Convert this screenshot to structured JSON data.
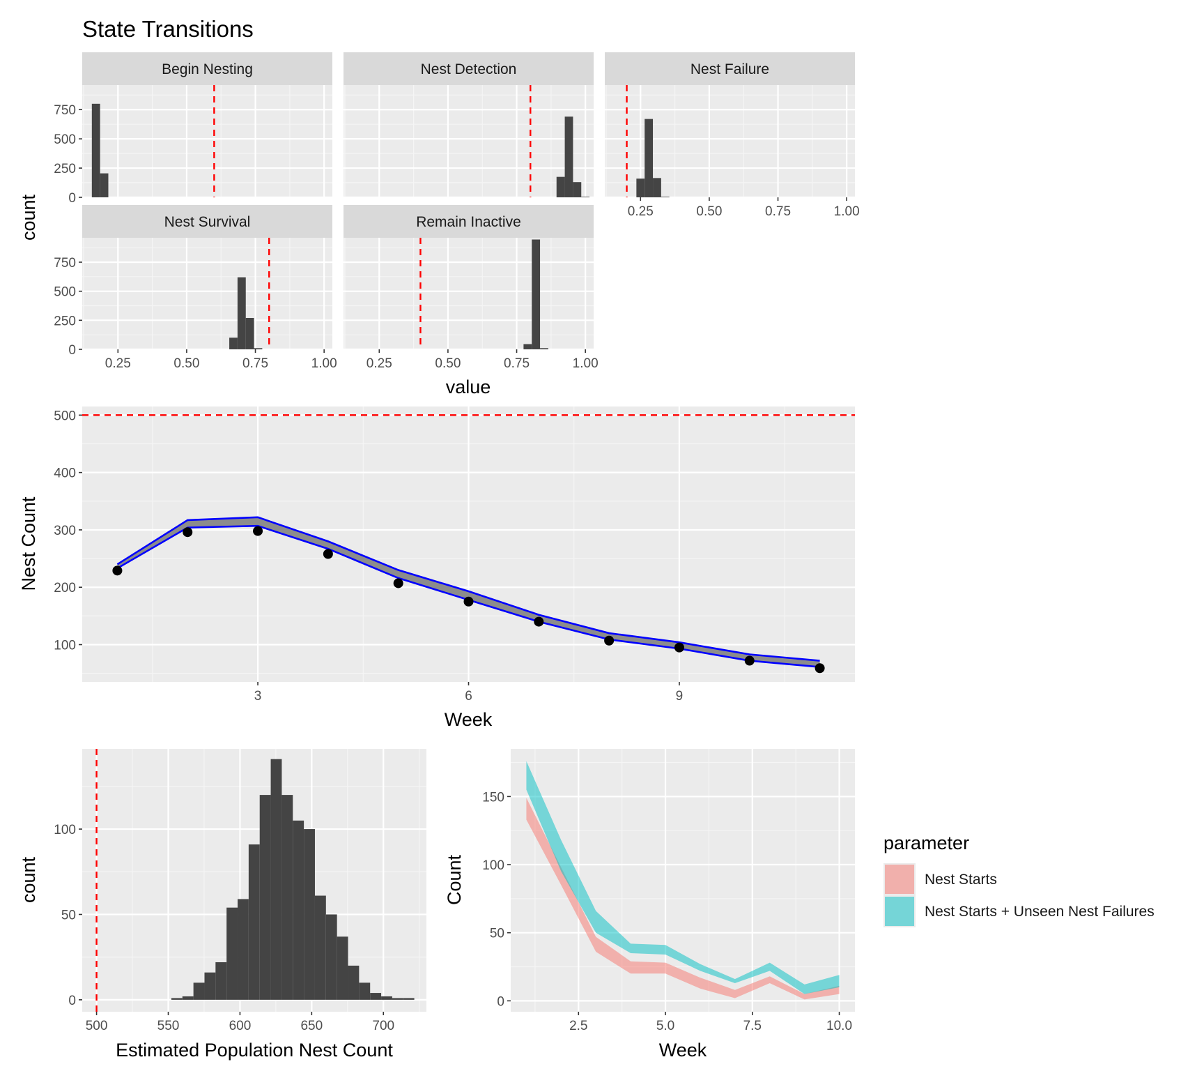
{
  "figure": {
    "title": "State Transitions"
  },
  "colors": {
    "panel_bg": "#ebebeb",
    "grid_major": "#ffffff",
    "grid_minor": "#f5f5f5",
    "strip_bg": "#d9d9d9",
    "bar_fill": "#444444",
    "reference_line": "#ff0000",
    "band_line": "#0000ff",
    "band_fill": "#8c8c8c",
    "point": "#000000",
    "nest_starts": "#f8766d",
    "nest_starts_unseen": "#00bfc4",
    "text_dark": "#1a1a1a",
    "text_axis": "#4d4d4d"
  },
  "chart_data": [
    {
      "id": "state_transitions",
      "type": "bar",
      "subtype": "faceted-histogram",
      "title": "State Transitions",
      "xlabel": "value",
      "ylabel": "count",
      "xlim": [
        0.12,
        1.03
      ],
      "ylim": [
        0,
        960
      ],
      "x_ticks": [
        0.25,
        0.5,
        0.75,
        1.0
      ],
      "x_tick_labels": [
        "0.25",
        "0.50",
        "0.75",
        "1.00"
      ],
      "y_ticks": [
        0,
        250,
        500,
        750
      ],
      "y_tick_labels": [
        "0",
        "250",
        "500",
        "750"
      ],
      "bin_width": 0.03,
      "grid": true,
      "facets": [
        {
          "name": "Begin Nesting",
          "reference": 0.6,
          "bins": [
            {
              "x": 0.17,
              "count": 800
            },
            {
              "x": 0.2,
              "count": 205
            }
          ]
        },
        {
          "name": "Nest Detection",
          "reference": 0.8,
          "bins": [
            {
              "x": 0.91,
              "count": 175
            },
            {
              "x": 0.94,
              "count": 690
            },
            {
              "x": 0.97,
              "count": 130
            },
            {
              "x": 1.0,
              "count": 5
            }
          ]
        },
        {
          "name": "Nest Failure",
          "reference": 0.2,
          "bins": [
            {
              "x": 0.25,
              "count": 160
            },
            {
              "x": 0.28,
              "count": 670
            },
            {
              "x": 0.31,
              "count": 165
            },
            {
              "x": 0.34,
              "count": 5
            }
          ]
        },
        {
          "name": "Nest Survival",
          "reference": 0.8,
          "bins": [
            {
              "x": 0.67,
              "count": 100
            },
            {
              "x": 0.7,
              "count": 620
            },
            {
              "x": 0.73,
              "count": 270
            },
            {
              "x": 0.76,
              "count": 10
            }
          ]
        },
        {
          "name": "Remain Inactive",
          "reference": 0.4,
          "bins": [
            {
              "x": 0.79,
              "count": 45
            },
            {
              "x": 0.82,
              "count": 945
            },
            {
              "x": 0.85,
              "count": 10
            }
          ]
        }
      ]
    },
    {
      "id": "nest_count",
      "type": "line",
      "subtype": "ribbon-with-points",
      "xlabel": "Week",
      "ylabel": "Nest Count",
      "xlim": [
        0.5,
        11.5
      ],
      "ylim": [
        35,
        515
      ],
      "x_ticks": [
        3,
        6,
        9
      ],
      "x_tick_labels": [
        "3",
        "6",
        "9"
      ],
      "y_ticks": [
        100,
        200,
        300,
        400,
        500
      ],
      "y_tick_labels": [
        "100",
        "200",
        "300",
        "400",
        "500"
      ],
      "reference_y": 500,
      "grid": true,
      "x": [
        1,
        2,
        3,
        4,
        5,
        6,
        7,
        8,
        9,
        10,
        11
      ],
      "band_upper": [
        240,
        317,
        322,
        280,
        230,
        193,
        152,
        120,
        104,
        83,
        72
      ],
      "band_lower": [
        233,
        304,
        307,
        267,
        216,
        178,
        140,
        109,
        93,
        72,
        61
      ],
      "observed": [
        229,
        296,
        298,
        258,
        207,
        175,
        140,
        107,
        95,
        72,
        59
      ]
    },
    {
      "id": "population_nest_count",
      "type": "bar",
      "subtype": "histogram",
      "xlabel": "Estimated Population Nest Count",
      "ylabel": "count",
      "xlim": [
        490,
        730
      ],
      "ylim": [
        -7,
        147
      ],
      "x_ticks": [
        500,
        550,
        600,
        650,
        700
      ],
      "x_tick_labels": [
        "500",
        "550",
        "600",
        "650",
        "700"
      ],
      "y_ticks": [
        0,
        50,
        100
      ],
      "y_tick_labels": [
        "0",
        "50",
        "100"
      ],
      "reference_x": 500,
      "bin_width": 7.7,
      "grid": true,
      "bins": [
        {
          "x": 556,
          "count": 1
        },
        {
          "x": 563.7,
          "count": 2
        },
        {
          "x": 571.4,
          "count": 10
        },
        {
          "x": 579.1,
          "count": 16
        },
        {
          "x": 586.8,
          "count": 22
        },
        {
          "x": 594.5,
          "count": 54
        },
        {
          "x": 602.2,
          "count": 59
        },
        {
          "x": 609.9,
          "count": 91
        },
        {
          "x": 617.6,
          "count": 120
        },
        {
          "x": 625.3,
          "count": 141
        },
        {
          "x": 633,
          "count": 120
        },
        {
          "x": 640.7,
          "count": 105
        },
        {
          "x": 648.4,
          "count": 100
        },
        {
          "x": 656.1,
          "count": 61
        },
        {
          "x": 663.8,
          "count": 50
        },
        {
          "x": 671.5,
          "count": 37
        },
        {
          "x": 679.2,
          "count": 20
        },
        {
          "x": 686.9,
          "count": 10
        },
        {
          "x": 694.6,
          "count": 4
        },
        {
          "x": 702.3,
          "count": 2
        },
        {
          "x": 710,
          "count": 1
        },
        {
          "x": 717.7,
          "count": 1
        }
      ]
    },
    {
      "id": "nest_starts",
      "type": "area",
      "subtype": "ribbons",
      "xlabel": "Week",
      "ylabel": "Count",
      "xlim": [
        0.55,
        10.45
      ],
      "ylim": [
        -8,
        185
      ],
      "x_ticks": [
        2.5,
        5.0,
        7.5,
        10.0
      ],
      "x_tick_labels": [
        "2.5",
        "5.0",
        "7.5",
        "10.0"
      ],
      "y_ticks": [
        0,
        50,
        100,
        150
      ],
      "y_tick_labels": [
        "0",
        "50",
        "100",
        "150"
      ],
      "grid": true,
      "legend_title": "parameter",
      "legend_position": "right",
      "series": [
        {
          "name": "Nest Starts",
          "color": "#f8766d",
          "x": [
            1,
            2,
            3,
            4,
            5,
            6,
            7,
            8,
            9,
            10
          ],
          "lower": [
            133,
            85,
            36,
            20,
            20,
            9,
            2,
            13,
            1,
            5
          ],
          "upper": [
            149,
            98,
            47,
            29,
            28,
            17,
            8,
            18,
            5,
            11
          ]
        },
        {
          "name": "Nest Starts + Unseen Nest Failures",
          "color": "#00bfc4",
          "x": [
            1,
            2,
            3,
            4,
            5,
            6,
            7,
            8,
            9,
            10
          ],
          "lower": [
            155,
            95,
            50,
            35,
            34,
            22,
            13,
            22,
            5,
            10
          ],
          "upper": [
            176,
            118,
            66,
            42,
            41,
            27,
            16,
            28,
            12,
            19
          ]
        }
      ]
    }
  ]
}
